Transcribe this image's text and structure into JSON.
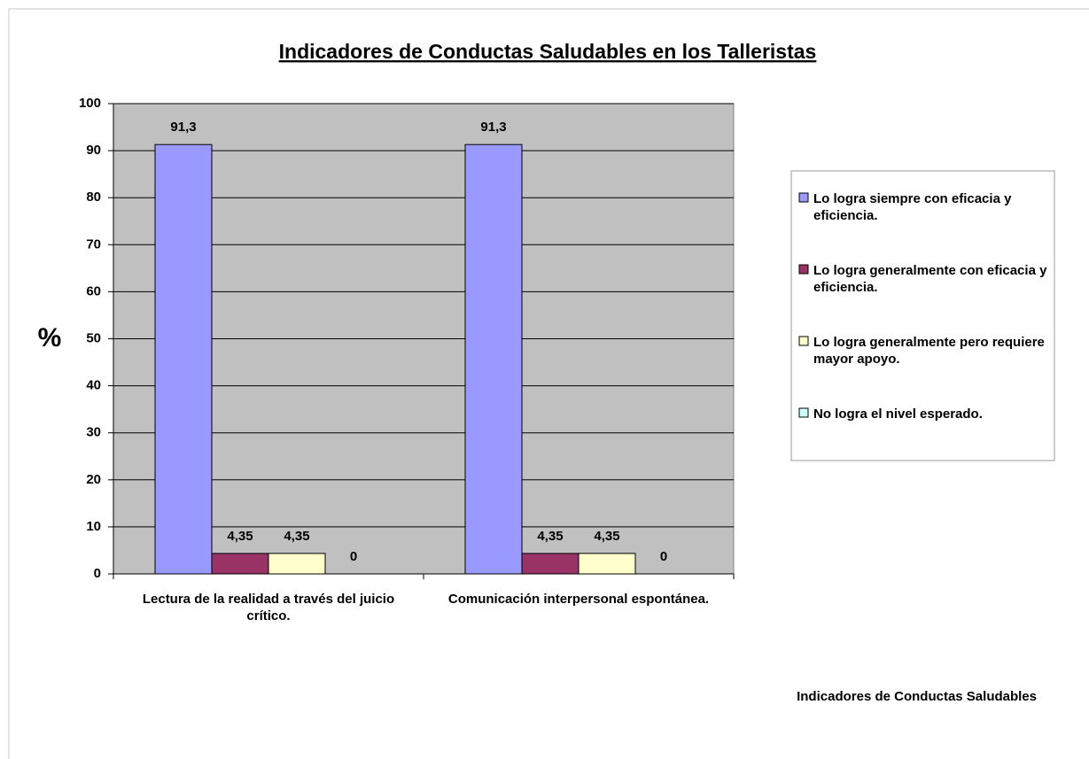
{
  "chart_data": {
    "type": "bar",
    "title": "Indicadores de Conductas Saludables en los Talleristas",
    "y_label": "%",
    "x_label": "Indicadores de Conductas Saludables",
    "categories": [
      "Lectura de la realidad a través del juicio crítico.",
      "Comunicación interpersonal espontánea."
    ],
    "series": [
      {
        "name": "Lo logra siempre con eficacia y eficiencia.",
        "color": "#9999ff",
        "values": [
          91.3,
          91.3
        ],
        "value_labels": [
          "91,3",
          "91,3"
        ]
      },
      {
        "name": "Lo logra generalmente con eficacia y eficiencia.",
        "color": "#993366",
        "values": [
          4.35,
          4.35
        ],
        "value_labels": [
          "4,35",
          "4,35"
        ]
      },
      {
        "name": "Lo logra generalmente pero requiere mayor apoyo.",
        "color": "#ffffcc",
        "values": [
          4.35,
          4.35
        ],
        "value_labels": [
          "4,35",
          "4,35"
        ]
      },
      {
        "name": "No logra el nivel esperado.",
        "color": "#ccffff",
        "values": [
          0,
          0
        ]
      }
    ],
    "ylim": [
      0,
      100
    ],
    "yticks": [
      0,
      10,
      20,
      30,
      40,
      50,
      60,
      70,
      80,
      90,
      100
    ],
    "grid": true,
    "legend": "right",
    "plot_background": "#c0c0c0"
  }
}
